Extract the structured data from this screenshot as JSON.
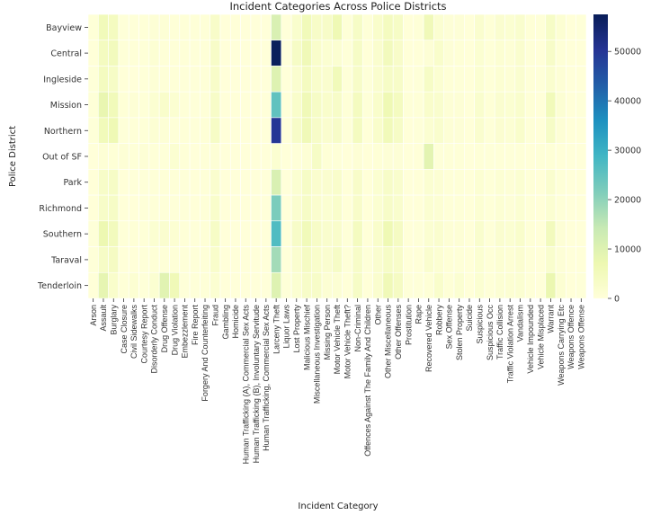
{
  "chart_data": {
    "type": "heatmap",
    "title": "Incident Categories Across Police Districts",
    "xlabel": "Incident Category",
    "ylabel": "Police District",
    "colormap": "YlGnBu",
    "colorbar": {
      "min": 0,
      "max": 57500,
      "ticks": [
        0,
        10000,
        20000,
        30000,
        40000,
        50000
      ]
    },
    "colormap_stops": [
      "#ffffd9",
      "#edf8b1",
      "#c7e9b4",
      "#7fcdbb",
      "#41b6c4",
      "#1d91c0",
      "#225ea8",
      "#253494",
      "#081d58"
    ],
    "rows": [
      "Bayview",
      "Central",
      "Ingleside",
      "Mission",
      "Northern",
      "Out of SF",
      "Park",
      "Richmond",
      "Southern",
      "Taraval",
      "Tenderloin"
    ],
    "columns": [
      "Arson",
      "Assault",
      "Burglary",
      "Case Closure",
      "Civil Sidewalks",
      "Courtesy Report",
      "Disorderly Conduct",
      "Drug Offense",
      "Drug Violation",
      "Embezzlement",
      "Fire Report",
      "Forgery And Counterfeiting",
      "Fraud",
      "Gambling",
      "Homicide",
      "Human Trafficking (A), Commercial Sex Acts",
      "Human Trafficking (B), Involuntary Servitude",
      "Human Trafficking, Commercial Sex Acts",
      "Larceny Theft",
      "Liquor Laws",
      "Lost Property",
      "Malicious Mischief",
      "Miscellaneous Investigation",
      "Missing Person",
      "Motor Vehicle Theft",
      "Motor Vehicle Theft?",
      "Non-Criminal",
      "Offences Against The Family And Children",
      "Other",
      "Other Miscellaneous",
      "Other Offenses",
      "Prostitution",
      "Rape",
      "Recovered Vehicle",
      "Robbery",
      "Sex Offense",
      "Stolen Property",
      "Suicide",
      "Suspicious",
      "Suspicious Occ",
      "Traffic Collision",
      "Traffic Violation Arrest",
      "Vandalism",
      "Vehicle Impounded",
      "Vehicle Misplaced",
      "Warrant",
      "Weapons Carrying Etc",
      "Weapons Offence",
      "Weapons Offense"
    ],
    "values": [
      [
        300,
        5500,
        4500,
        200,
        200,
        300,
        800,
        800,
        400,
        300,
        300,
        400,
        2800,
        20,
        100,
        5,
        5,
        5,
        11000,
        50,
        2200,
        5500,
        3000,
        3000,
        6500,
        300,
        3500,
        300,
        2500,
        4500,
        3500,
        100,
        300,
        5800,
        1500,
        600,
        600,
        150,
        2000,
        500,
        1800,
        1500,
        2200,
        500,
        300,
        3500,
        1200,
        100,
        200
      ],
      [
        150,
        4500,
        5000,
        300,
        300,
        300,
        1000,
        400,
        300,
        300,
        200,
        400,
        3000,
        10,
        50,
        5,
        5,
        5,
        57000,
        50,
        3500,
        6000,
        2500,
        1500,
        1500,
        200,
        3500,
        100,
        2000,
        5000,
        2800,
        100,
        100,
        700,
        2500,
        600,
        500,
        100,
        1500,
        300,
        1200,
        800,
        2000,
        400,
        100,
        3000,
        500,
        100,
        100
      ],
      [
        250,
        4500,
        3500,
        100,
        50,
        200,
        700,
        400,
        300,
        200,
        200,
        400,
        2800,
        10,
        80,
        5,
        5,
        5,
        10000,
        30,
        1800,
        4500,
        2500,
        2000,
        5500,
        200,
        3000,
        200,
        2000,
        3500,
        3000,
        50,
        200,
        3500,
        1500,
        500,
        300,
        100,
        1500,
        300,
        1300,
        800,
        1800,
        300,
        200,
        2000,
        800,
        50,
        100
      ],
      [
        300,
        8000,
        5500,
        500,
        800,
        300,
        1500,
        2500,
        1500,
        300,
        200,
        400,
        3000,
        10,
        100,
        5,
        5,
        5,
        25000,
        100,
        2500,
        6000,
        3500,
        2500,
        3000,
        300,
        4500,
        200,
        2500,
        6500,
        4500,
        300,
        300,
        2500,
        2200,
        800,
        700,
        150,
        2200,
        500,
        1800,
        1500,
        2400,
        500,
        150,
        5500,
        1000,
        150,
        200
      ],
      [
        200,
        5500,
        6500,
        200,
        300,
        300,
        1000,
        700,
        400,
        300,
        200,
        500,
        3500,
        10,
        50,
        5,
        5,
        5,
        50000,
        100,
        3000,
        6000,
        3000,
        2000,
        3000,
        200,
        4500,
        150,
        2500,
        5500,
        3500,
        100,
        200,
        1500,
        2200,
        700,
        600,
        150,
        2000,
        400,
        1600,
        1000,
        2500,
        400,
        150,
        3500,
        700,
        100,
        150
      ],
      [
        50,
        800,
        500,
        800,
        300,
        700,
        300,
        200,
        1500,
        400,
        50,
        300,
        700,
        5,
        20,
        5,
        5,
        5,
        1500,
        10,
        200,
        700,
        3500,
        500,
        400,
        50,
        800,
        100,
        500,
        600,
        600,
        10,
        100,
        9000,
        200,
        300,
        300,
        50,
        300,
        200,
        300,
        200,
        400,
        100,
        300,
        500,
        100,
        50,
        30
      ],
      [
        150,
        3000,
        3500,
        100,
        200,
        200,
        400,
        400,
        300,
        200,
        150,
        300,
        2000,
        5,
        30,
        5,
        5,
        5,
        11000,
        30,
        1500,
        3500,
        2000,
        1800,
        2500,
        150,
        2800,
        100,
        1500,
        3000,
        2200,
        50,
        100,
        1500,
        1000,
        400,
        300,
        100,
        1200,
        300,
        1000,
        700,
        1400,
        300,
        100,
        2000,
        400,
        50,
        100
      ],
      [
        150,
        3000,
        3500,
        100,
        100,
        200,
        400,
        200,
        200,
        200,
        150,
        300,
        2500,
        5,
        20,
        5,
        5,
        5,
        22000,
        30,
        1800,
        3500,
        2000,
        1500,
        2500,
        150,
        2800,
        100,
        1500,
        3000,
        2200,
        50,
        100,
        1500,
        1000,
        400,
        300,
        100,
        1200,
        300,
        1000,
        600,
        1400,
        300,
        100,
        1500,
        300,
        50,
        100
      ],
      [
        250,
        7000,
        5000,
        400,
        500,
        300,
        1500,
        1800,
        1200,
        400,
        250,
        500,
        3500,
        10,
        50,
        5,
        5,
        5,
        27000,
        100,
        3000,
        5500,
        3200,
        2200,
        2500,
        250,
        4500,
        150,
        2500,
        6500,
        4000,
        100,
        200,
        1500,
        2000,
        700,
        800,
        150,
        2200,
        400,
        1800,
        1500,
        2500,
        500,
        150,
        5000,
        800,
        100,
        150
      ],
      [
        200,
        3500,
        4000,
        100,
        100,
        200,
        500,
        300,
        300,
        200,
        200,
        400,
        2500,
        10,
        50,
        5,
        5,
        5,
        18000,
        30,
        1800,
        4000,
        2500,
        1800,
        3500,
        200,
        3000,
        200,
        1800,
        3500,
        2800,
        50,
        150,
        2000,
        1200,
        500,
        300,
        100,
        1500,
        300,
        1200,
        900,
        1700,
        300,
        150,
        2200,
        600,
        50,
        100
      ],
      [
        150,
        8500,
        2500,
        300,
        1200,
        200,
        1500,
        9500,
        6000,
        200,
        200,
        300,
        1500,
        5,
        80,
        5,
        5,
        5,
        10000,
        200,
        1500,
        3000,
        3000,
        1000,
        1000,
        100,
        3500,
        100,
        2000,
        6000,
        4000,
        200,
        200,
        500,
        2500,
        500,
        1500,
        100,
        1500,
        300,
        1000,
        1200,
        1500,
        300,
        50,
        7500,
        1200,
        150,
        200
      ]
    ]
  }
}
